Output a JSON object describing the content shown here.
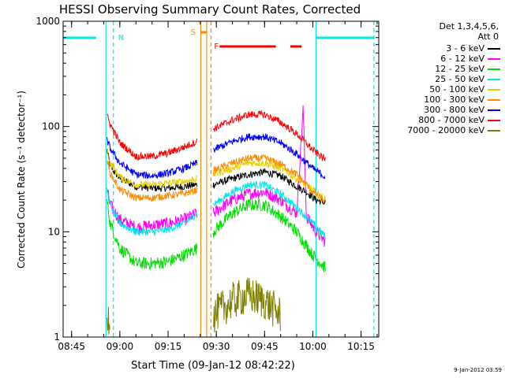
{
  "chart_data": {
    "type": "line",
    "title": "HESSI Observing Summary Count Rates, Corrected",
    "xlabel": "Start Time (09-Jan-12 08:42:22)",
    "ylabel": "Corrected Count Rate (s⁻¹ detector⁻¹)",
    "yscale": "log",
    "ylim": [
      1,
      1000
    ],
    "xlim": [
      "08:42:22",
      "10:20:30"
    ],
    "x_ticks": [
      "08:45",
      "09:00",
      "09:15",
      "09:30",
      "09:45",
      "10:00",
      "10:15"
    ],
    "y_ticks": [
      "1",
      "10",
      "100",
      "1000"
    ],
    "grid": false,
    "legend_position": "right",
    "legend_title": [
      "Det 1,3,4,5,6,",
      "Att 0"
    ],
    "series": [
      {
        "name": "3 - 6 keV",
        "color": "#000000",
        "segments": [
          {
            "x": [
              "08:56:00",
              "08:57:00",
              "09:00:00",
              "09:05:00",
              "09:10:00",
              "09:15:00",
              "09:20:00",
              "09:24:00"
            ],
            "y": [
              60,
              42,
              32,
              27,
              26,
              26,
              27,
              28
            ]
          },
          {
            "x": [
              "09:29:00",
              "09:35:00",
              "09:40:00",
              "09:45:00",
              "09:50:00",
              "09:55:00",
              "09:58:00",
              "10:01:00",
              "10:04:00"
            ],
            "y": [
              28,
              32,
              35,
              37,
              34,
              27,
              24,
              20,
              19
            ]
          }
        ]
      },
      {
        "name": "6 - 12 keV",
        "color": "#ff00ff",
        "segments": [
          {
            "x": [
              "08:56:00",
              "08:57:00",
              "09:00:00",
              "09:05:00",
              "09:10:00",
              "09:15:00",
              "09:20:00",
              "09:24:00"
            ],
            "y": [
              25,
              18,
              13,
              11,
              11.5,
              12,
              13,
              15
            ]
          },
          {
            "x": [
              "09:29:00",
              "09:35:00",
              "09:40:00",
              "09:45:00",
              "09:50:00",
              "09:55:00",
              "09:57:00",
              "09:58:00",
              "10:01:00",
              "10:04:00"
            ],
            "y": [
              15,
              20,
              23,
              24,
              20,
              15,
              150,
              14,
              10,
              8
            ]
          }
        ]
      },
      {
        "name": "12 - 25 keV",
        "color": "#00e000",
        "segments": [
          {
            "x": [
              "08:56:00",
              "08:57:00",
              "09:00:00",
              "09:05:00",
              "09:10:00",
              "09:15:00",
              "09:20:00",
              "09:24:00"
            ],
            "y": [
              20,
              12,
              7,
              5,
              5,
              5.2,
              6,
              7
            ]
          },
          {
            "x": [
              "09:29:00",
              "09:35:00",
              "09:40:00",
              "09:45:00",
              "09:50:00",
              "09:55:00",
              "10:00:00",
              "10:04:00"
            ],
            "y": [
              10,
              15,
              18,
              18,
              14,
              10,
              6,
              4.5
            ]
          }
        ]
      },
      {
        "name": "25 - 50 keV",
        "color": "#00e8e8",
        "segments": [
          {
            "x": [
              "08:56:00",
              "08:57:00",
              "09:00:00",
              "09:05:00",
              "09:10:00",
              "09:15:00",
              "09:20:00",
              "09:24:00"
            ],
            "y": [
              25,
              18,
              12,
              10,
              10,
              10.5,
              12,
              15
            ]
          },
          {
            "x": [
              "09:29:00",
              "09:35:00",
              "09:40:00",
              "09:45:00",
              "09:50:00",
              "09:55:00",
              "10:00:00",
              "10:04:00"
            ],
            "y": [
              18,
              24,
              28,
              28,
              23,
              17,
              12,
              9
            ]
          }
        ]
      },
      {
        "name": "50 - 100 keV",
        "color": "#e8d000",
        "segments": [
          {
            "x": [
              "08:56:00",
              "08:57:00",
              "09:00:00",
              "09:05:00",
              "09:10:00",
              "09:15:00",
              "09:20:00",
              "09:24:00"
            ],
            "y": [
              60,
              45,
              33,
              28,
              28,
              29,
              30,
              32
            ]
          },
          {
            "x": [
              "09:29:00",
              "09:35:00",
              "09:40:00",
              "09:45:00",
              "09:50:00",
              "09:55:00",
              "10:00:00",
              "10:04:00"
            ],
            "y": [
              35,
              40,
              45,
              45,
              40,
              32,
              25,
              20
            ]
          }
        ]
      },
      {
        "name": "100 - 300 keV",
        "color": "#ff8c00",
        "segments": [
          {
            "x": [
              "08:56:00",
              "08:57:00",
              "09:00:00",
              "09:05:00",
              "09:10:00",
              "09:15:00",
              "09:20:00",
              "09:24:00"
            ],
            "y": [
              48,
              36,
              25,
              21,
              21,
              22,
              23,
              25
            ]
          },
          {
            "x": [
              "09:29:00",
              "09:35:00",
              "09:40:00",
              "09:45:00",
              "09:50:00",
              "09:55:00",
              "10:00:00",
              "10:04:00"
            ],
            "y": [
              38,
              45,
              50,
              50,
              44,
              35,
              24,
              19
            ]
          }
        ]
      },
      {
        "name": "300 - 800 keV",
        "color": "#0000ff",
        "segments": [
          {
            "x": [
              "08:56:00",
              "08:57:00",
              "09:00:00",
              "09:05:00",
              "09:10:00",
              "09:15:00",
              "09:20:00",
              "09:24:00"
            ],
            "y": [
              75,
              62,
              45,
              35,
              34,
              36,
              40,
              45
            ]
          },
          {
            "x": [
              "09:29:00",
              "09:35:00",
              "09:40:00",
              "09:45:00",
              "09:50:00",
              "09:55:00",
              "10:00:00",
              "10:04:00"
            ],
            "y": [
              60,
              72,
              80,
              80,
              70,
              55,
              40,
              33
            ]
          }
        ]
      },
      {
        "name": "800 - 7000 keV",
        "color": "#ff0000",
        "segments": [
          {
            "x": [
              "08:56:00",
              "08:57:00",
              "09:00:00",
              "09:05:00",
              "09:10:00",
              "09:15:00",
              "09:20:00",
              "09:24:00"
            ],
            "y": [
              125,
              105,
              70,
              52,
              52,
              56,
              64,
              72
            ]
          },
          {
            "x": [
              "09:29:00",
              "09:35:00",
              "09:40:00",
              "09:45:00",
              "09:50:00",
              "09:55:00",
              "10:00:00",
              "10:04:00"
            ],
            "y": [
              95,
              115,
              130,
              130,
              110,
              85,
              60,
              48
            ]
          }
        ]
      },
      {
        "name": "7000 - 20000 keV",
        "color": "#808000",
        "segments": [
          {
            "x": [
              "08:56:00",
              "08:57:00"
            ],
            "y": [
              1.6,
              1.6
            ]
          },
          {
            "x": [
              "09:29:00",
              "09:35:00",
              "09:40:00",
              "09:45:00",
              "09:50:00"
            ],
            "y": [
              1.6,
              2.2,
              2.5,
              2.2,
              1.6
            ]
          }
        ]
      }
    ],
    "annotations": [
      {
        "label": "N",
        "color": "#00e8e8"
      },
      {
        "label": "S",
        "color": "#ff8c00"
      },
      {
        "label": "F",
        "color": "#ff0000"
      }
    ],
    "footer": "9-Jan-2012 03:59"
  }
}
